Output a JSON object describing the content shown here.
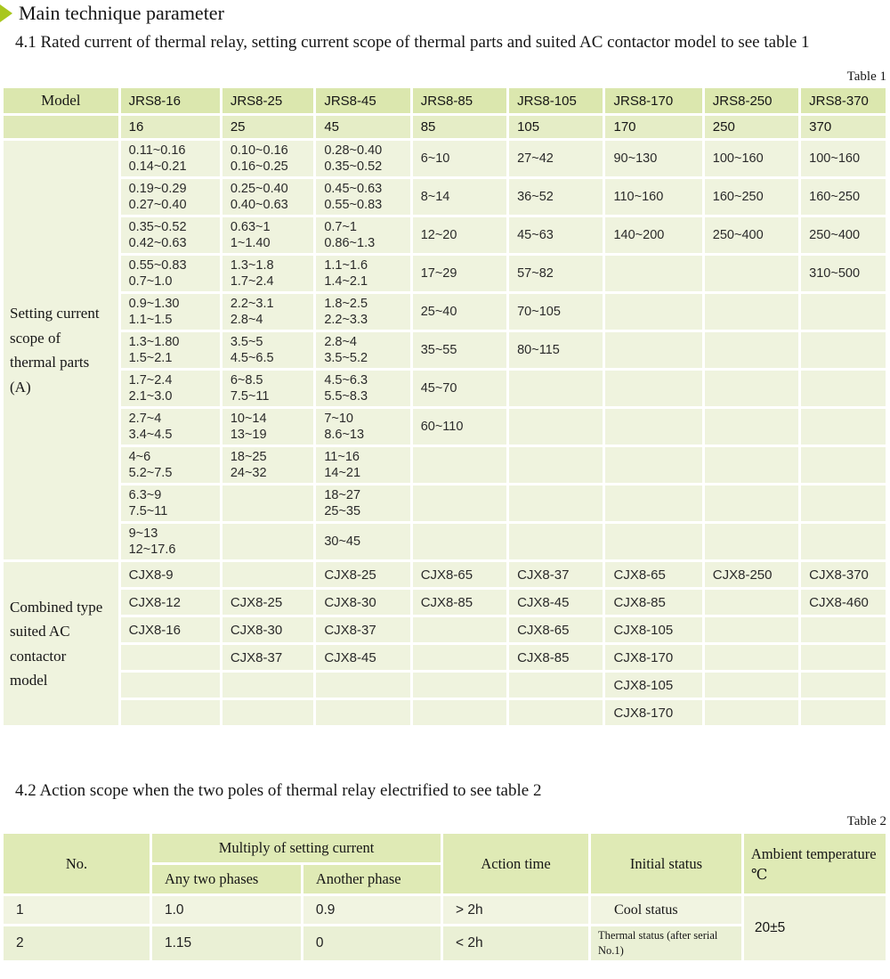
{
  "page": {
    "title": "Main technique parameter",
    "section_4_1": "4.1 Rated current of thermal relay, setting current scope of thermal parts and suited AC contactor model to see table 1",
    "section_4_2": "4.2 Action scope when the two poles of thermal relay electrified to see table 2",
    "table1_label": "Table 1",
    "table2_label": "Table 2"
  },
  "colors": {
    "accent_arrow": "#a9c71e",
    "header_green": "#dbe7ae",
    "subheader_green": "#e5edc6",
    "cell_green": "#eff3de",
    "table2_row1": "#f1f4e1",
    "table2_row2": "#eaf0d5"
  },
  "table1": {
    "model_header": "Model",
    "column_headers": [
      "JRS8-16",
      "JRS8-25",
      "JRS8-45",
      "JRS8-85",
      "JRS8-105",
      "JRS8-170",
      "JRS8-250",
      "JRS8-370"
    ],
    "rated_currents": [
      "16",
      "25",
      "45",
      "85",
      "105",
      "170",
      "250",
      "370"
    ],
    "setting_label_lines": [
      "Setting current",
      "scope of",
      "thermal parts",
      "(A)"
    ],
    "setting_rows": [
      [
        [
          "0.11~0.16",
          "0.14~0.21"
        ],
        [
          "0.10~0.16",
          "0.16~0.25"
        ],
        [
          "0.28~0.40",
          "0.35~0.52"
        ],
        [
          "6~10"
        ],
        [
          "27~42"
        ],
        [
          "90~130"
        ],
        [
          "100~160"
        ],
        [
          "100~160"
        ]
      ],
      [
        [
          "0.19~0.29",
          "0.27~0.40"
        ],
        [
          "0.25~0.40",
          "0.40~0.63"
        ],
        [
          "0.45~0.63",
          "0.55~0.83"
        ],
        [
          "8~14"
        ],
        [
          "36~52"
        ],
        [
          "110~160"
        ],
        [
          "160~250"
        ],
        [
          "160~250"
        ]
      ],
      [
        [
          "0.35~0.52",
          "0.42~0.63"
        ],
        [
          "0.63~1",
          "1~1.40"
        ],
        [
          "0.7~1",
          "0.86~1.3"
        ],
        [
          "12~20"
        ],
        [
          "45~63"
        ],
        [
          "140~200"
        ],
        [
          "250~400"
        ],
        [
          "250~400"
        ]
      ],
      [
        [
          "0.55~0.83",
          "0.7~1.0"
        ],
        [
          "1.3~1.8",
          "1.7~2.4"
        ],
        [
          "1.1~1.6",
          "1.4~2.1"
        ],
        [
          "17~29"
        ],
        [
          "57~82"
        ],
        [],
        [],
        [
          "310~500"
        ]
      ],
      [
        [
          "0.9~1.30",
          "1.1~1.5"
        ],
        [
          "2.2~3.1",
          "2.8~4"
        ],
        [
          "1.8~2.5",
          "2.2~3.3"
        ],
        [
          "25~40"
        ],
        [
          "70~105"
        ],
        [],
        [],
        []
      ],
      [
        [
          "1.3~1.80",
          "1.5~2.1"
        ],
        [
          "3.5~5",
          "4.5~6.5"
        ],
        [
          "2.8~4",
          "3.5~5.2"
        ],
        [
          "35~55"
        ],
        [
          "80~115"
        ],
        [],
        [],
        []
      ],
      [
        [
          "1.7~2.4",
          "2.1~3.0"
        ],
        [
          "6~8.5",
          "7.5~11"
        ],
        [
          "4.5~6.3",
          "5.5~8.3"
        ],
        [
          "45~70"
        ],
        [],
        [],
        [],
        []
      ],
      [
        [
          "2.7~4",
          "3.4~4.5"
        ],
        [
          "10~14",
          "13~19"
        ],
        [
          "7~10",
          "8.6~13"
        ],
        [
          "60~110"
        ],
        [],
        [],
        [],
        []
      ],
      [
        [
          "4~6",
          "5.2~7.5"
        ],
        [
          "18~25",
          "24~32"
        ],
        [
          "11~16",
          "14~21"
        ],
        [],
        [],
        [],
        [],
        []
      ],
      [
        [
          "6.3~9",
          "7.5~11"
        ],
        [],
        [
          "18~27",
          "25~35"
        ],
        [],
        [],
        [],
        [],
        []
      ],
      [
        [
          "9~13",
          "12~17.6"
        ],
        [],
        [
          "30~45"
        ],
        [],
        [],
        [],
        [],
        []
      ]
    ],
    "combined_label_lines": [
      "Combined type",
      "suited AC",
      "contactor",
      "model"
    ],
    "combined_rows": [
      [
        "CJX8-9",
        "",
        "CJX8-25",
        "CJX8-65",
        "CJX8-37",
        "CJX8-65",
        "CJX8-250",
        "CJX8-370"
      ],
      [
        "CJX8-12",
        "CJX8-25",
        "CJX8-30",
        "CJX8-85",
        "CJX8-45",
        "CJX8-85",
        "",
        "CJX8-460"
      ],
      [
        "CJX8-16",
        "CJX8-30",
        "CJX8-37",
        "",
        "CJX8-65",
        "CJX8-105",
        "",
        ""
      ],
      [
        "",
        "CJX8-37",
        "CJX8-45",
        "",
        "CJX8-85",
        "CJX8-170",
        "",
        ""
      ],
      [
        "",
        "",
        "",
        "",
        "",
        "CJX8-105",
        "",
        ""
      ],
      [
        "",
        "",
        "",
        "",
        "",
        "CJX8-170",
        "",
        ""
      ]
    ]
  },
  "table2": {
    "headers": {
      "no": "No.",
      "multiply": "Multiply of setting current",
      "any_two_phases": "Any two phases",
      "another_phase": "Another phase",
      "action_time": "Action time",
      "initial_status": "Initial status",
      "ambient_line1": "Ambient temperature",
      "ambient_line2": "℃"
    },
    "rows": [
      {
        "no": "1",
        "any_two_phases": "1.0",
        "another_phase": "0.9",
        "action_time": "> 2h",
        "initial_status": "Cool status"
      },
      {
        "no": "2",
        "any_two_phases": "1.15",
        "another_phase": "0",
        "action_time": "< 2h",
        "initial_status": "Thermal status (after serial No.1)"
      }
    ],
    "ambient_temperature": "20±5"
  }
}
